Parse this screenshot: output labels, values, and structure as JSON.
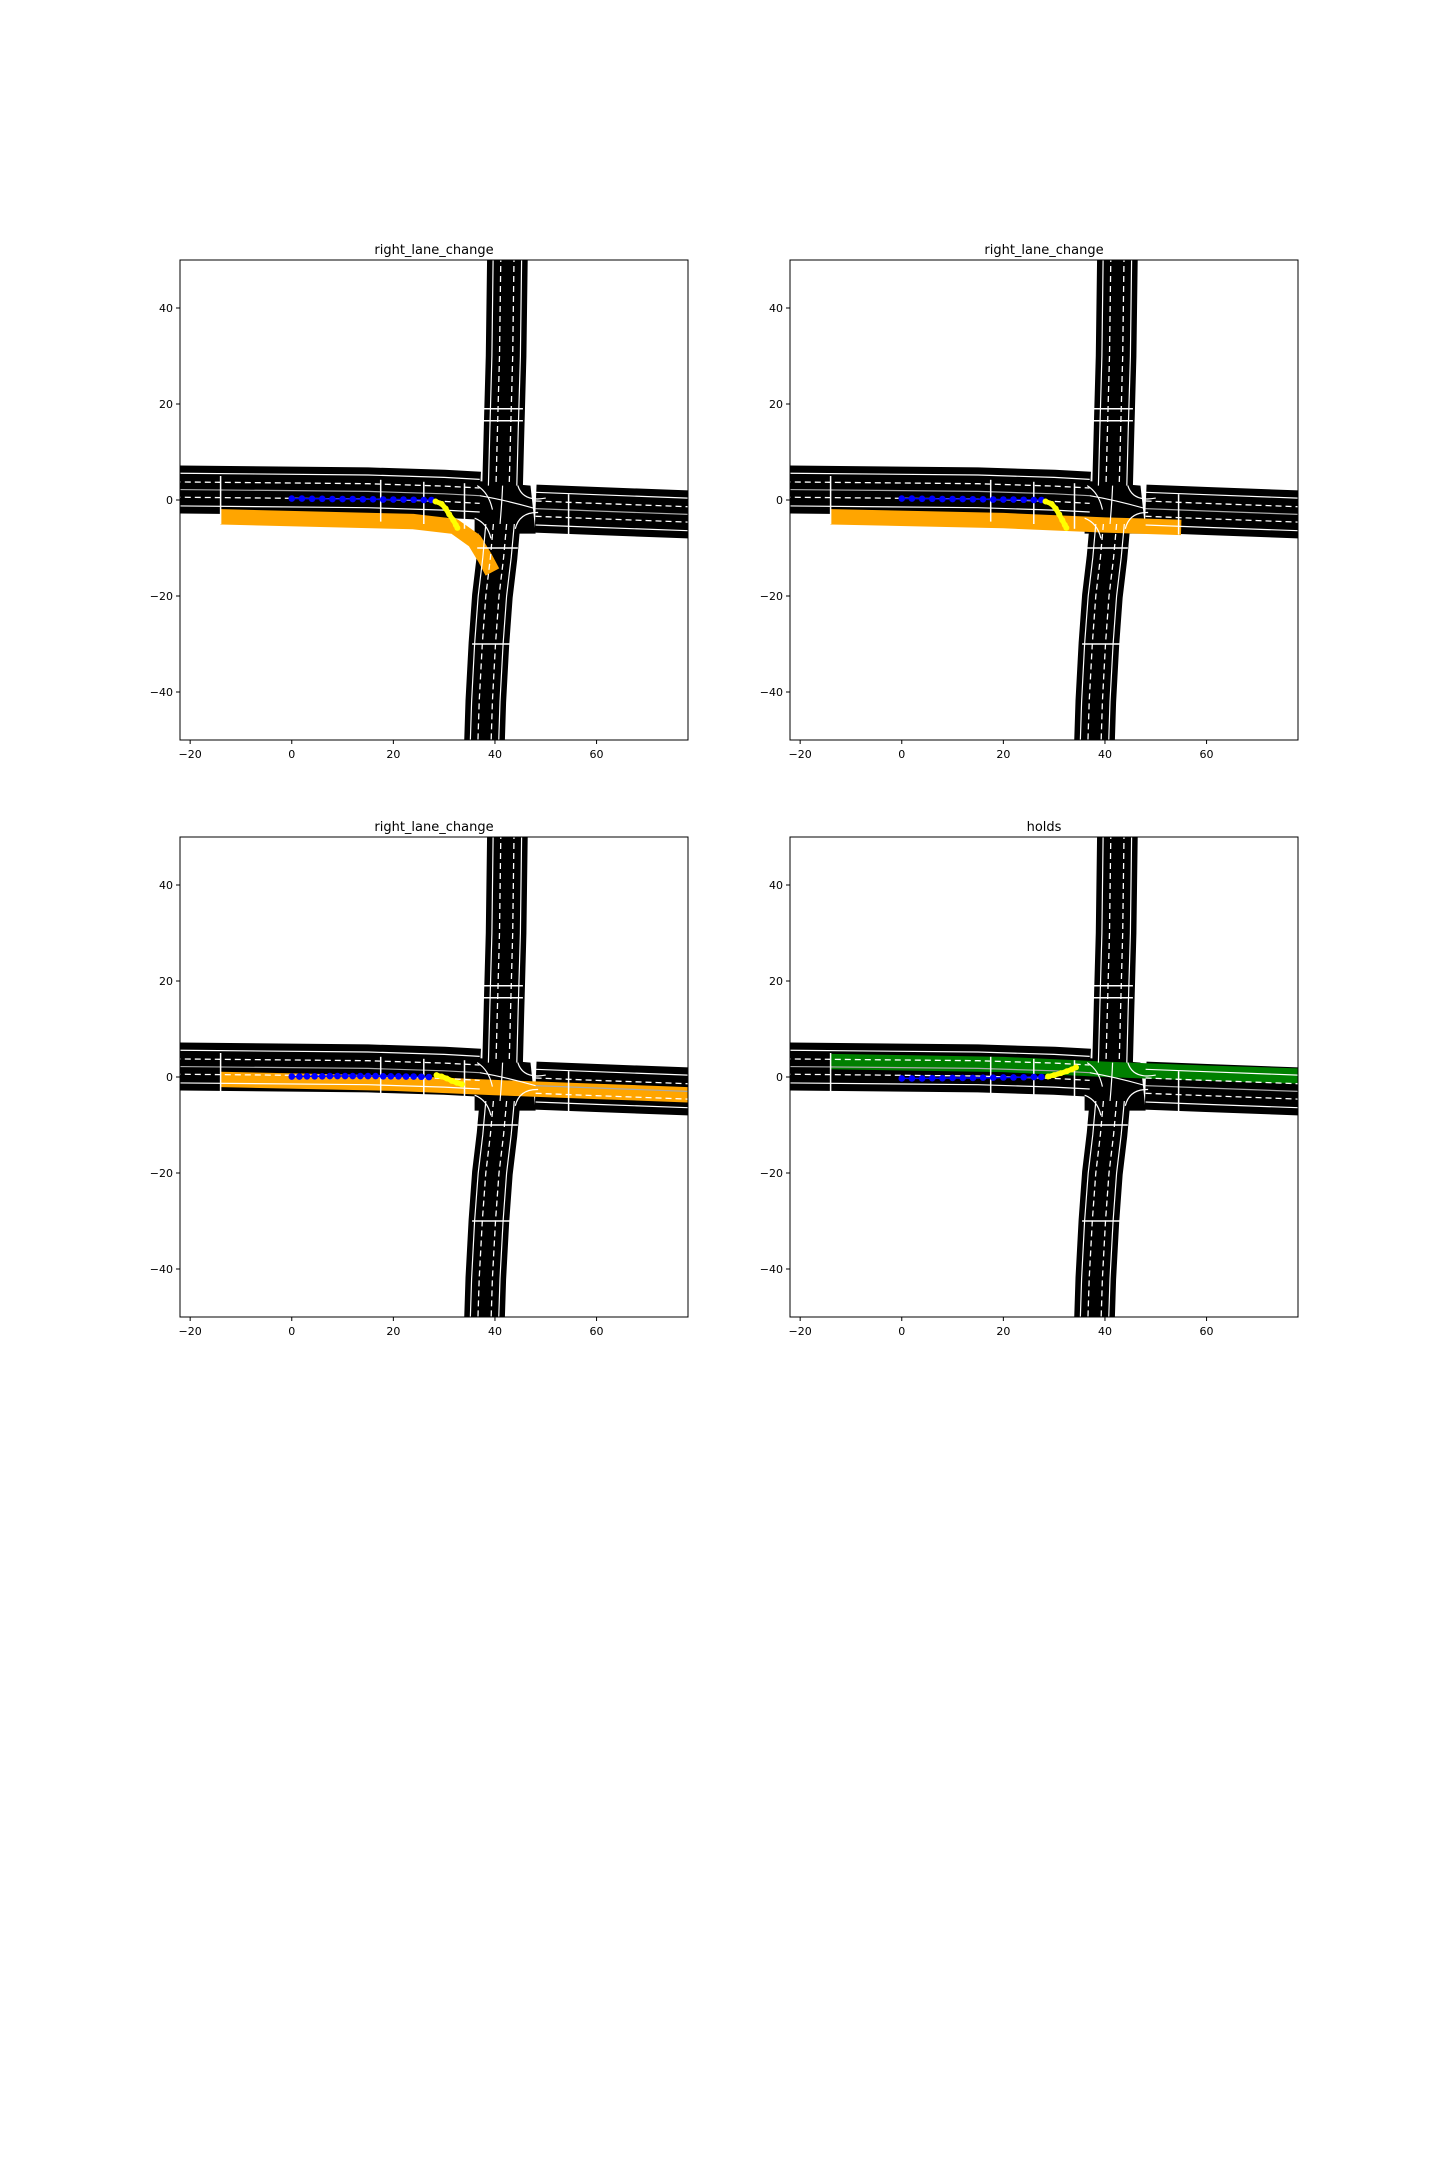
{
  "figure": {
    "rows": 2,
    "cols": 2
  },
  "colors": {
    "road": "#000000",
    "lane_separator": "#ffffff",
    "centerline": "#aaaaaa",
    "history": "#0000ff",
    "prediction": "#ffff00",
    "highlight_orange": "#ffa500",
    "highlight_green": "#008000"
  },
  "chart_data": [
    {
      "type": "scatter",
      "title": "right_lane_change",
      "xlim": [
        -22,
        78
      ],
      "ylim": [
        -50,
        50
      ],
      "xticks": [
        -20,
        0,
        20,
        40,
        60
      ],
      "yticks": [
        40,
        20,
        0,
        -20,
        -40
      ],
      "xtick_labels": [
        "−20",
        "0",
        "20",
        "40",
        "60"
      ],
      "ytick_labels": [
        "40",
        "20",
        "0",
        "−20",
        "−40"
      ],
      "highlight": {
        "color": "orange",
        "path": [
          [
            -14,
            -3.5
          ],
          [
            24,
            -4.5
          ],
          [
            32,
            -5.5
          ],
          [
            36,
            -8.5
          ],
          [
            38,
            -12
          ],
          [
            39.5,
            -15
          ]
        ]
      },
      "history": {
        "color": "blue",
        "x": [
          0,
          2,
          4,
          6,
          8,
          10,
          12,
          14,
          16,
          18,
          20,
          22,
          24,
          26,
          27.5
        ],
        "y": [
          0.3,
          0.3,
          0.25,
          0.25,
          0.2,
          0.2,
          0.2,
          0.15,
          0.15,
          0.1,
          0.1,
          0.1,
          0.05,
          0,
          0
        ]
      },
      "prediction": {
        "color": "yellow",
        "x": [
          28.3,
          29.5,
          30.3,
          31,
          31.8,
          32.3,
          32.6
        ],
        "y": [
          -0.3,
          -0.8,
          -1.8,
          -3,
          -4.2,
          -5.2,
          -5.8
        ]
      }
    },
    {
      "type": "scatter",
      "title": "right_lane_change",
      "xlim": [
        -22,
        78
      ],
      "ylim": [
        -50,
        50
      ],
      "xticks": [
        -20,
        0,
        20,
        40,
        60
      ],
      "yticks": [
        40,
        20,
        0,
        -20,
        -40
      ],
      "xtick_labels": [
        "−20",
        "0",
        "20",
        "40",
        "60"
      ],
      "ytick_labels": [
        "40",
        "20",
        "0",
        "−20",
        "−40"
      ],
      "highlight": {
        "color": "orange",
        "path": [
          [
            -14,
            -3.5
          ],
          [
            20,
            -4.3
          ],
          [
            40,
            -5.2
          ],
          [
            55,
            -5.7
          ]
        ]
      },
      "history": {
        "color": "blue",
        "x": [
          0,
          2,
          4,
          6,
          8,
          10,
          12,
          14,
          16,
          18,
          20,
          22,
          24,
          26,
          27.5
        ],
        "y": [
          0.3,
          0.3,
          0.25,
          0.25,
          0.2,
          0.2,
          0.2,
          0.15,
          0.15,
          0.1,
          0.1,
          0.1,
          0.05,
          0,
          0
        ]
      },
      "prediction": {
        "color": "yellow",
        "x": [
          28.3,
          29.5,
          30.3,
          31,
          31.6,
          32.1,
          32.4
        ],
        "y": [
          -0.3,
          -0.8,
          -1.8,
          -3,
          -4.2,
          -5.2,
          -5.8
        ]
      }
    },
    {
      "type": "scatter",
      "title": "right_lane_change",
      "xlim": [
        -22,
        78
      ],
      "ylim": [
        -50,
        50
      ],
      "xticks": [
        -20,
        0,
        20,
        40,
        60
      ],
      "yticks": [
        40,
        20,
        0,
        -20,
        -40
      ],
      "xtick_labels": [
        "−20",
        "0",
        "20",
        "40",
        "60"
      ],
      "ytick_labels": [
        "40",
        "20",
        "0",
        "−20",
        "−40"
      ],
      "highlight": {
        "color": "orange",
        "path": [
          [
            -14,
            -0.5
          ],
          [
            20,
            -1.3
          ],
          [
            40,
            -2.2
          ],
          [
            60,
            -3
          ],
          [
            78,
            -3.7
          ]
        ]
      },
      "history": {
        "color": "blue",
        "x": [
          0,
          1.5,
          3,
          4.5,
          6,
          7.5,
          9,
          10.5,
          12,
          13.5,
          15,
          16.5,
          18,
          19.5,
          21,
          22.5,
          24,
          25.5,
          27
        ],
        "y": [
          0.1,
          0.1,
          0.15,
          0.15,
          0.15,
          0.2,
          0.2,
          0.2,
          0.2,
          0.2,
          0.2,
          0.2,
          0.15,
          0.15,
          0.15,
          0.1,
          0.1,
          0.05,
          0
        ]
      },
      "prediction": {
        "color": "yellow",
        "x": [
          28.5,
          29.5,
          30.5,
          31.5,
          32.5,
          33.5
        ],
        "y": [
          0.4,
          0.1,
          -0.3,
          -0.8,
          -1.2,
          -1.5
        ]
      }
    },
    {
      "type": "scatter",
      "title": "holds",
      "xlim": [
        -22,
        78
      ],
      "ylim": [
        -50,
        50
      ],
      "xticks": [
        -20,
        0,
        20,
        40,
        60
      ],
      "yticks": [
        40,
        20,
        0,
        -20,
        -40
      ],
      "xtick_labels": [
        "−20",
        "0",
        "20",
        "40",
        "60"
      ],
      "ytick_labels": [
        "40",
        "20",
        "0",
        "−20",
        "−40"
      ],
      "highlight": {
        "color": "green",
        "path": [
          [
            -14,
            3.2
          ],
          [
            20,
            2.6
          ],
          [
            40,
            1.6
          ],
          [
            60,
            0.8
          ],
          [
            78,
            0.2
          ]
        ]
      },
      "history": {
        "color": "blue",
        "x": [
          0,
          2,
          4,
          6,
          8,
          10,
          12,
          14,
          16,
          18,
          20,
          22,
          24,
          26,
          27.5
        ],
        "y": [
          -0.3,
          -0.3,
          -0.3,
          -0.25,
          -0.25,
          -0.2,
          -0.2,
          -0.2,
          -0.15,
          -0.15,
          -0.1,
          -0.1,
          -0.05,
          0,
          0
        ]
      },
      "prediction": {
        "color": "yellow",
        "x": [
          28.8,
          30,
          31.3,
          32.5,
          33.5,
          34.3
        ],
        "y": [
          0.1,
          0.4,
          0.8,
          1.2,
          1.6,
          2
        ]
      }
    }
  ]
}
